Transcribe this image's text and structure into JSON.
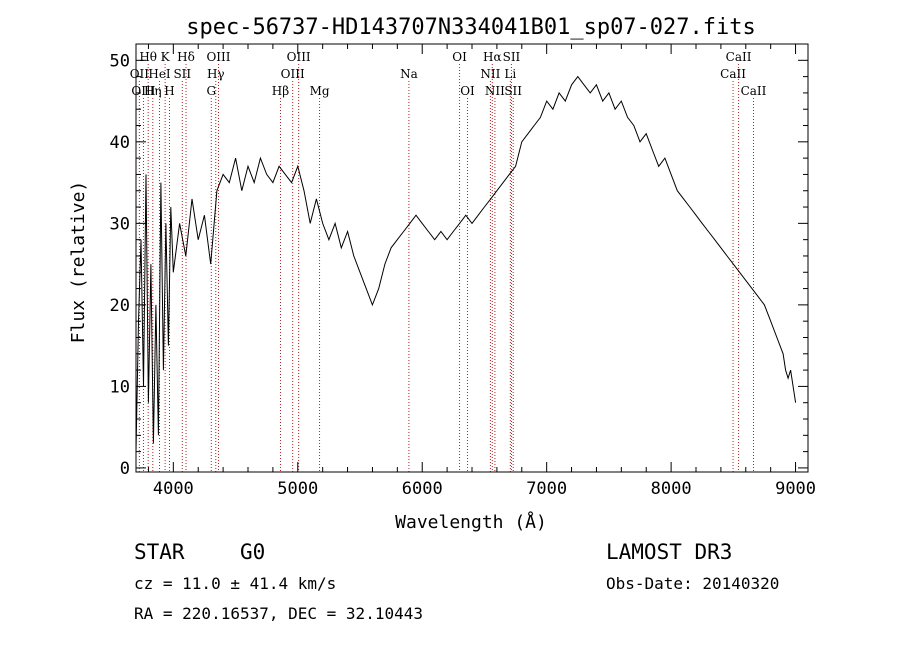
{
  "chart_data": {
    "type": "line",
    "title": "spec-56737-HD143707N334041B01_sp07-027.fits",
    "xlabel": "Wavelength (Å)",
    "ylabel": "Flux (relative)",
    "xlim": [
      3700,
      9100
    ],
    "ylim": [
      -0.5,
      52
    ],
    "xticks": [
      4000,
      5000,
      6000,
      7000,
      8000,
      9000
    ],
    "yticks": [
      0,
      10,
      20,
      30,
      40,
      50
    ],
    "grid": false,
    "line_color": "#000000",
    "marker_color": "#b22222",
    "series": [
      {
        "x": [
          3700,
          3720,
          3740,
          3760,
          3780,
          3800,
          3820,
          3840,
          3860,
          3880,
          3900,
          3920,
          3940,
          3960,
          3980,
          4000,
          4050,
          4100,
          4150,
          4200,
          4250,
          4300,
          4350,
          4400,
          4450,
          4500,
          4550,
          4600,
          4650,
          4700,
          4750,
          4800,
          4850,
          4900,
          4950,
          5000,
          5050,
          5100,
          5150,
          5200,
          5250,
          5300,
          5350,
          5400,
          5450,
          5500,
          5550,
          5600,
          5650,
          5700,
          5750,
          5800,
          5850,
          5900,
          5950,
          6000,
          6050,
          6100,
          6150,
          6200,
          6250,
          6300,
          6350,
          6400,
          6450,
          6500,
          6550,
          6600,
          6650,
          6700,
          6750,
          6800,
          6850,
          6900,
          6950,
          7000,
          7050,
          7100,
          7150,
          7200,
          7250,
          7300,
          7350,
          7400,
          7450,
          7500,
          7550,
          7600,
          7650,
          7700,
          7750,
          7800,
          7850,
          7900,
          7950,
          8000,
          8050,
          8100,
          8150,
          8200,
          8250,
          8300,
          8350,
          8400,
          8450,
          8500,
          8550,
          8600,
          8650,
          8700,
          8750,
          8800,
          8850,
          8900,
          8920,
          8940,
          8960,
          8980,
          9000
        ],
        "y": [
          2,
          18,
          28,
          10,
          36,
          8,
          25,
          3,
          20,
          4,
          35,
          12,
          30,
          15,
          32,
          24,
          30,
          26,
          33,
          28,
          31,
          25,
          34,
          36,
          35,
          38,
          34,
          37,
          35,
          38,
          36,
          35,
          37,
          36,
          35,
          37,
          34,
          30,
          33,
          30,
          28,
          30,
          27,
          29,
          26,
          24,
          22,
          20,
          22,
          25,
          27,
          28,
          29,
          30,
          31,
          30,
          29,
          28,
          29,
          28,
          29,
          30,
          31,
          30,
          31,
          32,
          33,
          34,
          35,
          36,
          37,
          40,
          41,
          42,
          43,
          45,
          44,
          46,
          45,
          47,
          48,
          47,
          46,
          47,
          45,
          46,
          44,
          45,
          43,
          42,
          40,
          41,
          39,
          37,
          38,
          36,
          34,
          33,
          32,
          31,
          30,
          29,
          28,
          27,
          26,
          25,
          24,
          23,
          22,
          21,
          20,
          18,
          16,
          14,
          12,
          11,
          12,
          10,
          8
        ]
      }
    ],
    "line_markers": [
      {
        "name": "Hθ",
        "wavelength": 3798,
        "row": 0
      },
      {
        "name": "OII",
        "wavelength": 3727,
        "row": 1
      },
      {
        "name": "OIII",
        "wavelength": 3760,
        "row": 2
      },
      {
        "name": "HeI",
        "wavelength": 3889,
        "row": 1
      },
      {
        "name": "Hη",
        "wavelength": 3835,
        "row": 2
      },
      {
        "name": "K",
        "wavelength": 3934,
        "row": 0
      },
      {
        "name": "H",
        "wavelength": 3969,
        "row": 2
      },
      {
        "name": "SII",
        "wavelength": 4072,
        "row": 1
      },
      {
        "name": "Hδ",
        "wavelength": 4102,
        "row": 0
      },
      {
        "name": "OIII",
        "wavelength": 4363,
        "row": 0
      },
      {
        "name": "Hγ",
        "wavelength": 4341,
        "row": 1
      },
      {
        "name": "G",
        "wavelength": 4305,
        "row": 2
      },
      {
        "name": "Hβ",
        "wavelength": 4861,
        "row": 2
      },
      {
        "name": "OIII",
        "wavelength": 5007,
        "row": 0
      },
      {
        "name": "OIII",
        "wavelength": 4959,
        "row": 1
      },
      {
        "name": "Mg",
        "wavelength": 5175,
        "row": 2
      },
      {
        "name": "Na",
        "wavelength": 5893,
        "row": 1
      },
      {
        "name": "OI",
        "wavelength": 6300,
        "row": 0
      },
      {
        "name": "OI",
        "wavelength": 6364,
        "row": 2
      },
      {
        "name": "Hα",
        "wavelength": 6563,
        "row": 0
      },
      {
        "name": "NII",
        "wavelength": 6548,
        "row": 1
      },
      {
        "name": "NII",
        "wavelength": 6584,
        "row": 2
      },
      {
        "name": "SII",
        "wavelength": 6717,
        "row": 0
      },
      {
        "name": "Li",
        "wavelength": 6708,
        "row": 1
      },
      {
        "name": "SII",
        "wavelength": 6731,
        "row": 2
      },
      {
        "name": "CaII",
        "wavelength": 8542,
        "row": 0
      },
      {
        "name": "CaII",
        "wavelength": 8498,
        "row": 1
      },
      {
        "name": "CaII",
        "wavelength": 8662,
        "row": 2
      }
    ]
  },
  "info": {
    "class": "STAR",
    "subclass": "G0",
    "survey": "LAMOST DR3",
    "cz": "cz = 11.0 ± 41.4 km/s",
    "obs_date": "Obs-Date: 20140320",
    "radec": "RA = 220.16537, DEC =  32.10443"
  }
}
